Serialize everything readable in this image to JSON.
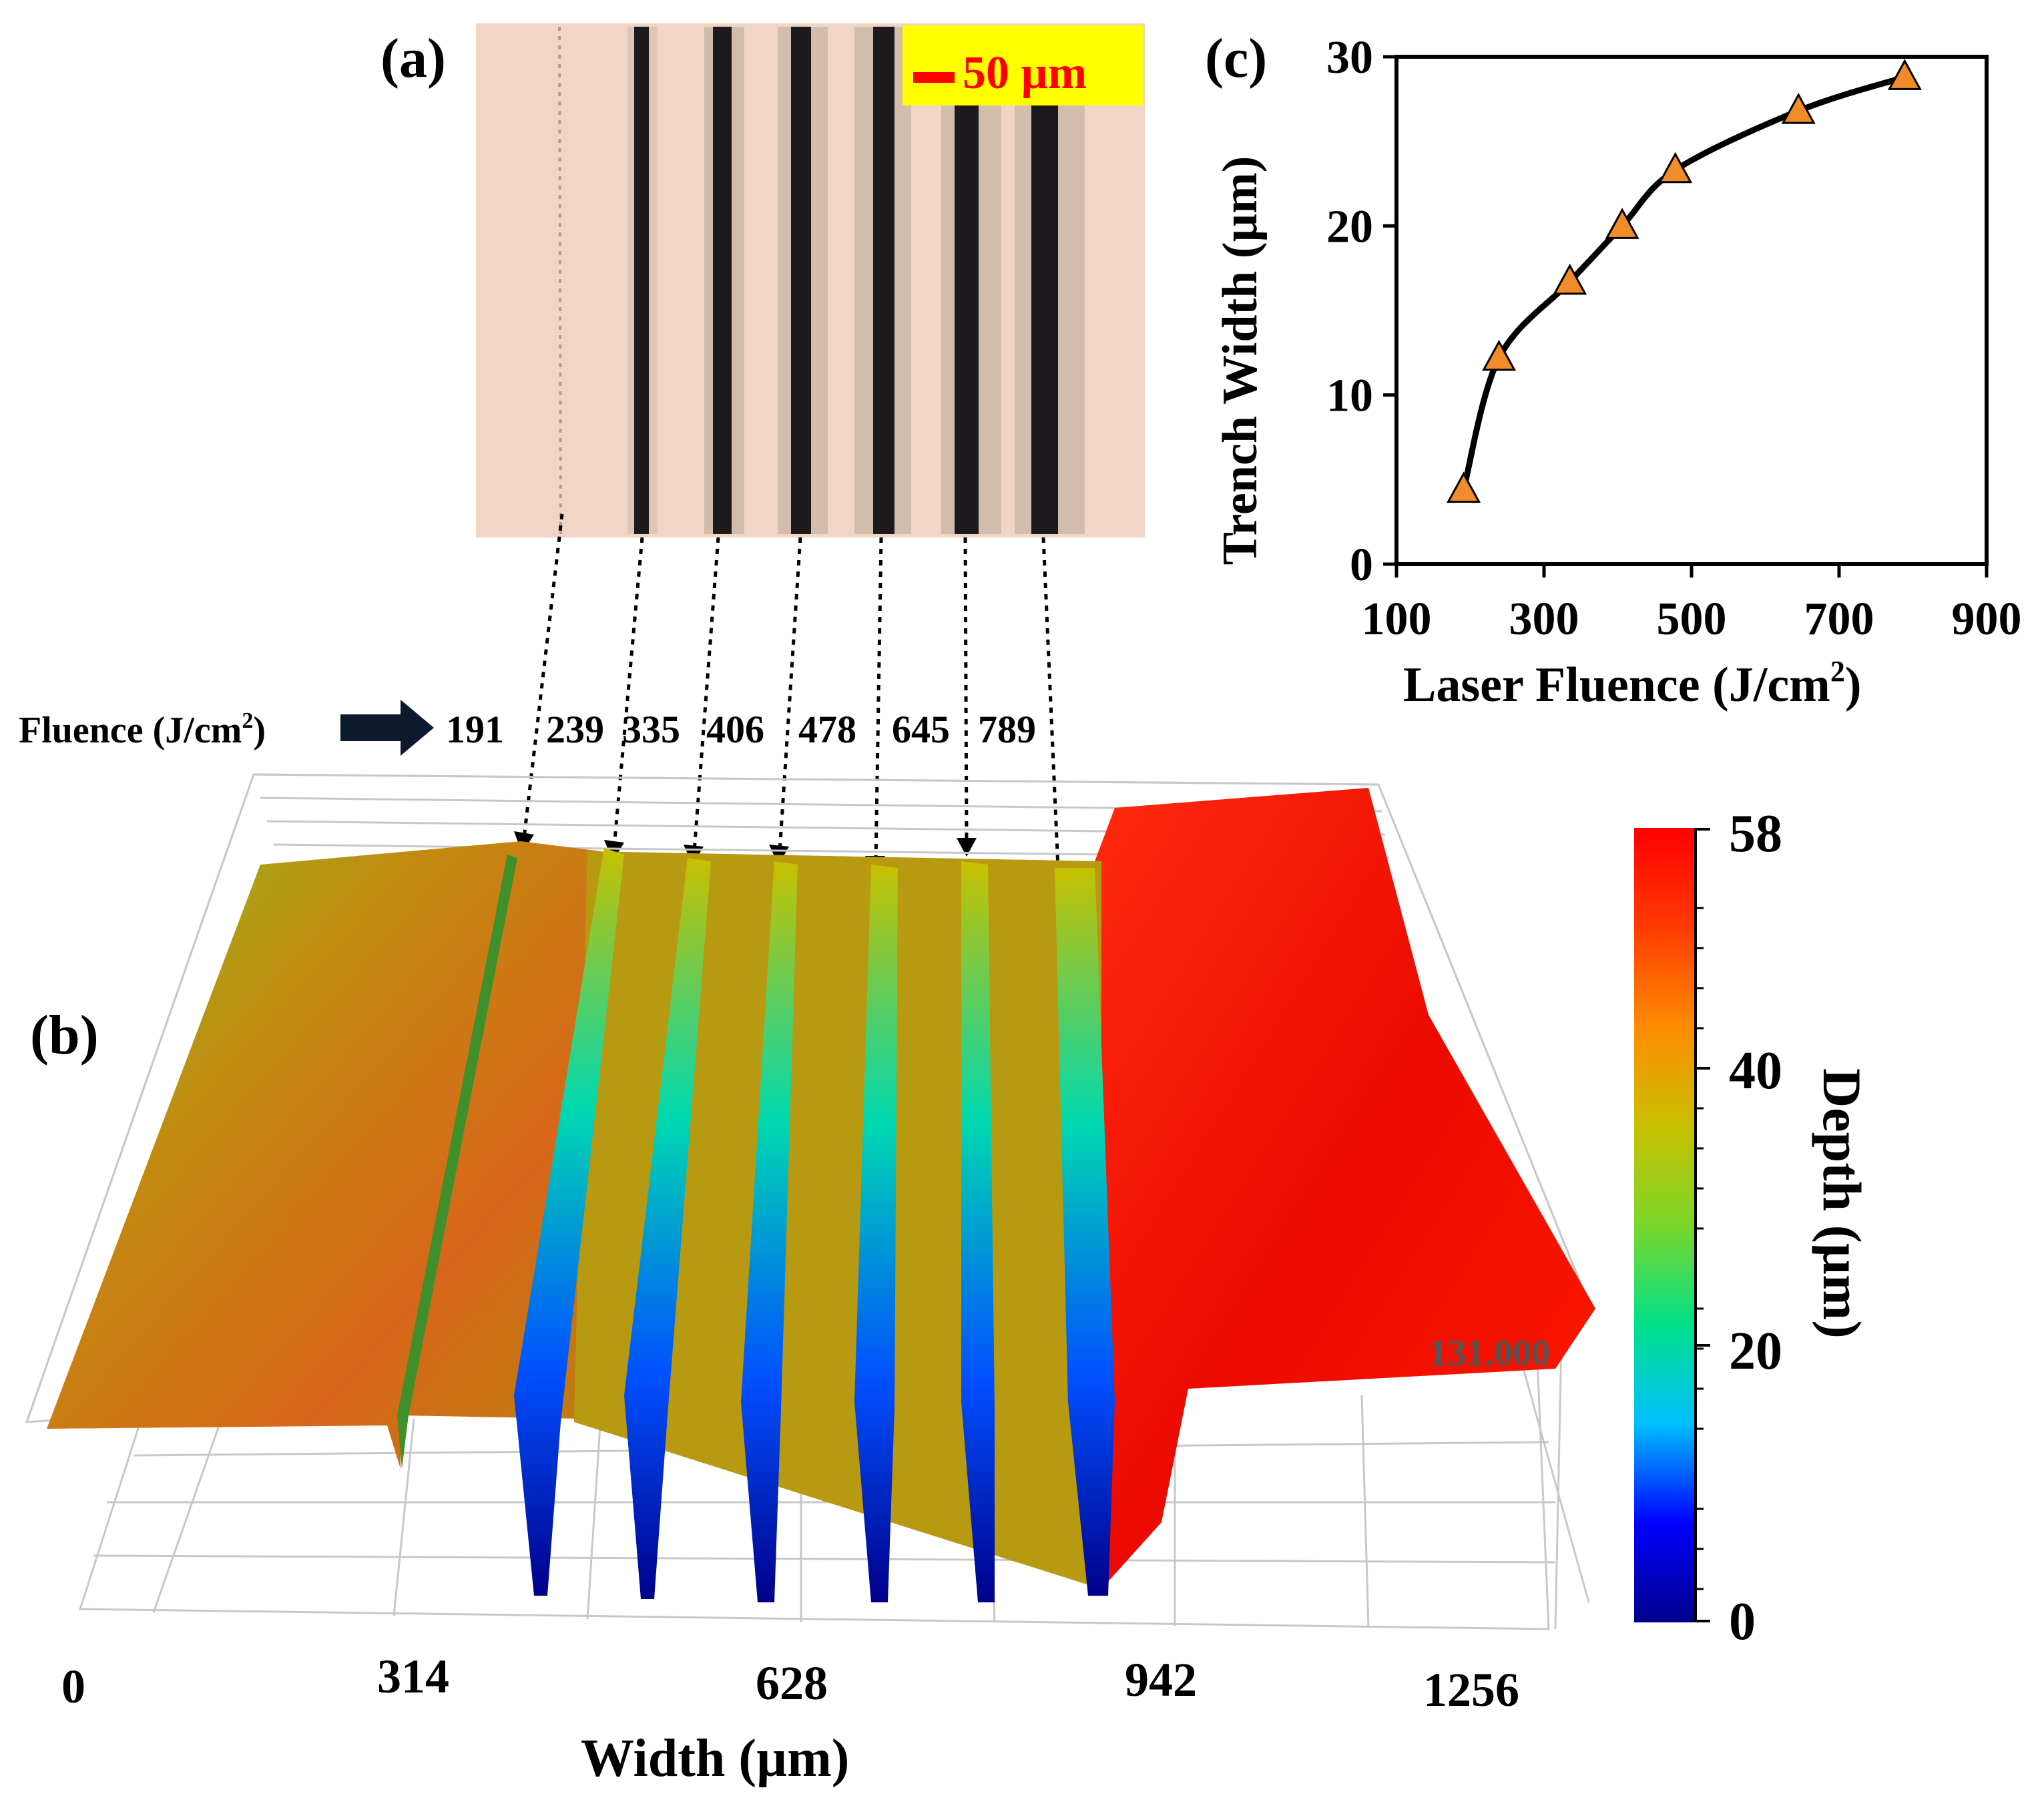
{
  "panels": {
    "a": {
      "label": "(a)",
      "scale_bar": "50 µm",
      "trench_count": 7
    },
    "b": {
      "label": "(b)",
      "fluence_label": "Fluence (J/cm",
      "fluence_label_sup": "2",
      "fluence_label_tail": ")",
      "fluence_values": [
        "191",
        "239",
        "335",
        "406",
        "478",
        "645",
        "789"
      ],
      "x_ticks": [
        "0",
        "314",
        "628",
        "942",
        "1256"
      ],
      "x_label": "Width (µm)",
      "side_value": "131.000",
      "colorbar": {
        "title": "Depth (µm)",
        "ticks": [
          "0",
          "20",
          "40",
          "58"
        ],
        "range": [
          0,
          58
        ],
        "colors": [
          "#00008b",
          "#0000ff",
          "#00bfff",
          "#00e08a",
          "#7cd62a",
          "#c8c000",
          "#ff8c00",
          "#ff3a00",
          "#ff0000"
        ]
      }
    },
    "c": {
      "label": "(c)"
    }
  },
  "chart_data": {
    "type": "line",
    "title": "",
    "xlabel": "Laser Fluence (J/cm²)",
    "xlabel_main": "Laser Fluence (J/cm",
    "xlabel_sup": "2",
    "xlabel_tail": ")",
    "ylabel": "Trench Width (µm)",
    "xlim": [
      100,
      900
    ],
    "ylim": [
      0,
      30
    ],
    "x_ticks": [
      100,
      300,
      500,
      700,
      900
    ],
    "y_ticks": [
      0,
      10,
      20,
      30
    ],
    "series": [
      {
        "name": "Trench Width",
        "x": [
          191,
          239,
          335,
          406,
          478,
          645,
          789
        ],
        "y": [
          4.4,
          12.2,
          16.7,
          20.0,
          23.3,
          26.8,
          28.8
        ],
        "marker": "triangle",
        "marker_color": "#f28c28",
        "line_color": "#000000"
      }
    ]
  }
}
